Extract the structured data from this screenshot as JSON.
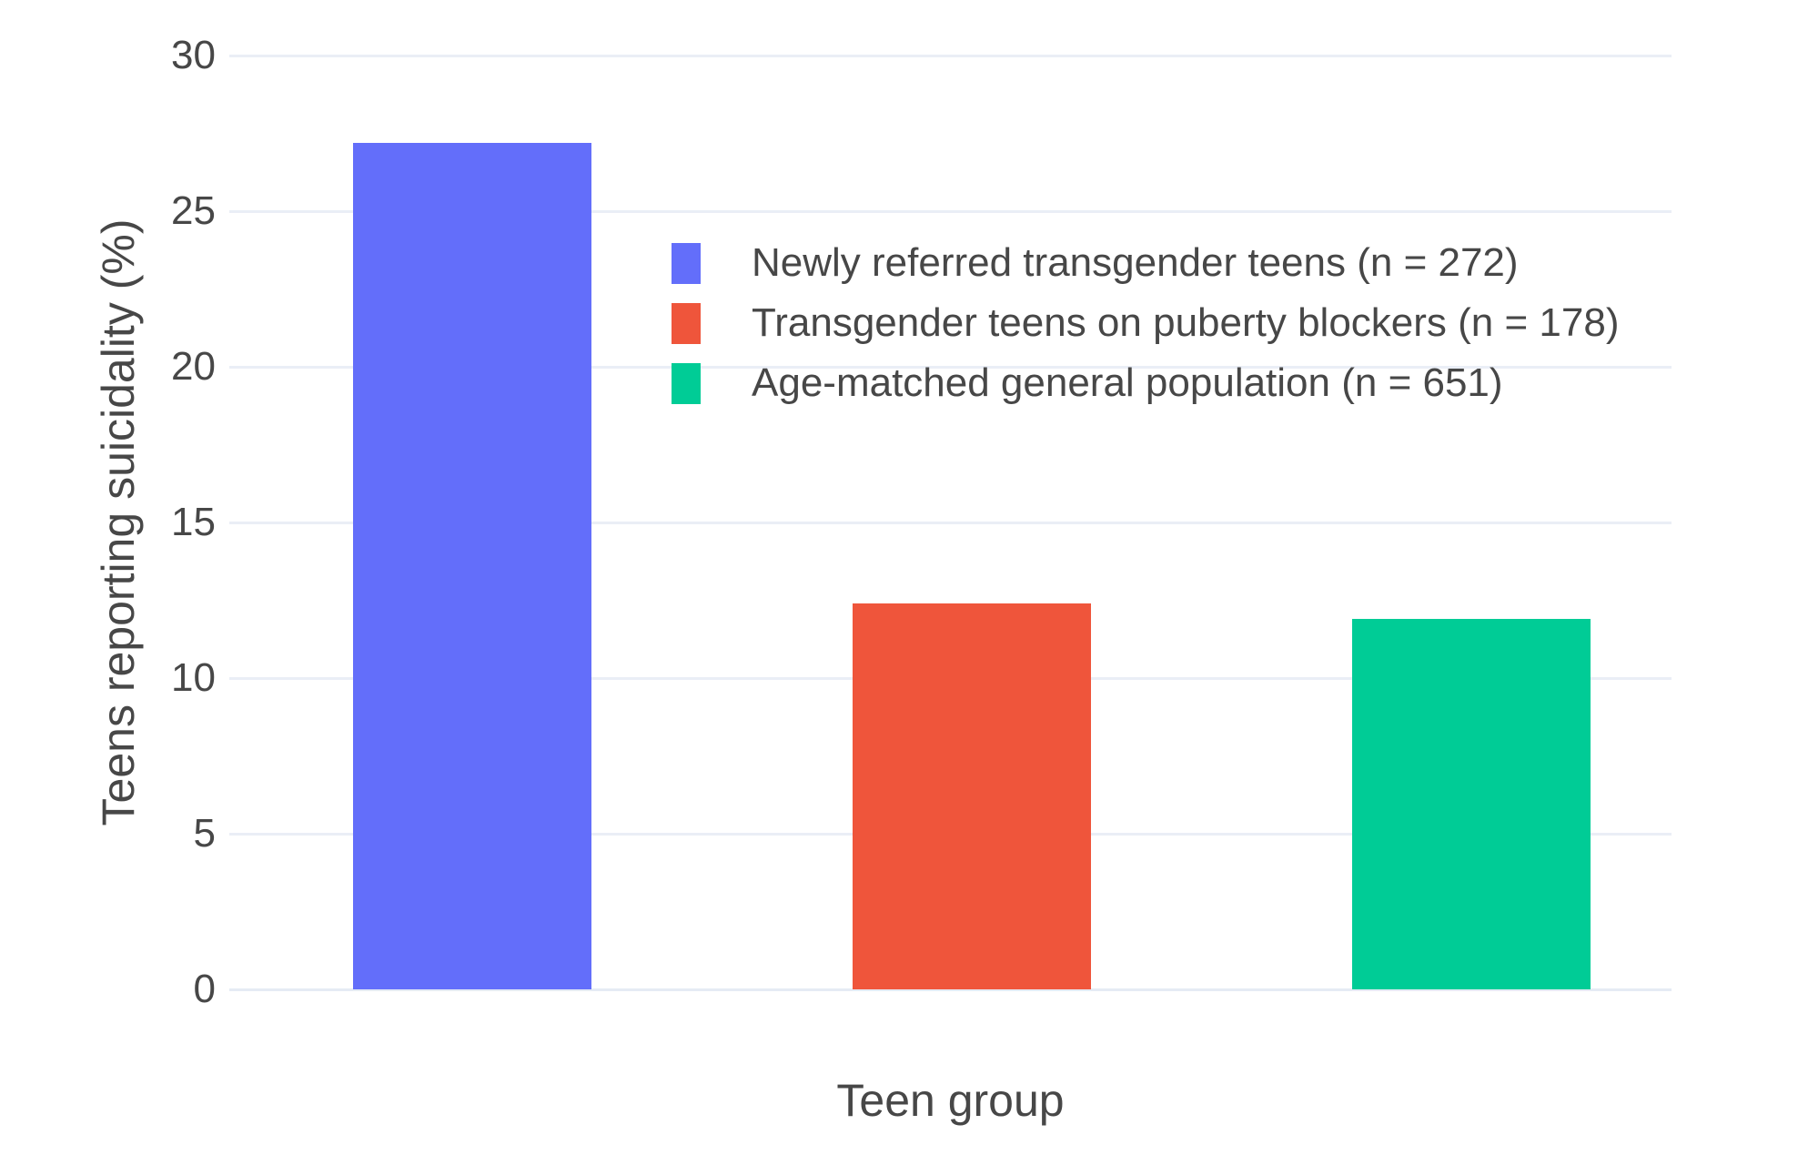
{
  "chart_data": {
    "type": "bar",
    "title": "",
    "xlabel": "Teen group",
    "ylabel": "Teens reporting suicidality (%)",
    "ylim": [
      0,
      30
    ],
    "yticks": [
      0,
      5,
      10,
      15,
      20,
      25,
      30
    ],
    "grid": true,
    "legend_position": "inside upper-center",
    "categories": [
      "Newly referred transgender teens (n = 272)",
      "Transgender teens on puberty blockers (n = 178)",
      "Age-matched general population (n = 651)"
    ],
    "bars": [
      {
        "name": "bar-newly-referred",
        "label": "Newly referred transgender teens (n = 272)",
        "value": 27.2,
        "color": "#636EFA"
      },
      {
        "name": "bar-puberty-blockers",
        "label": "Transgender teens on puberty blockers (n = 178)",
        "value": 12.4,
        "color": "#EF553B"
      },
      {
        "name": "bar-general-population",
        "label": "Age-matched general population (n = 651)",
        "value": 11.9,
        "color": "#00CC96"
      }
    ]
  },
  "colors": {
    "background": "#FFFFFF",
    "gridline": "#EAEEF6",
    "text": "#474747"
  }
}
